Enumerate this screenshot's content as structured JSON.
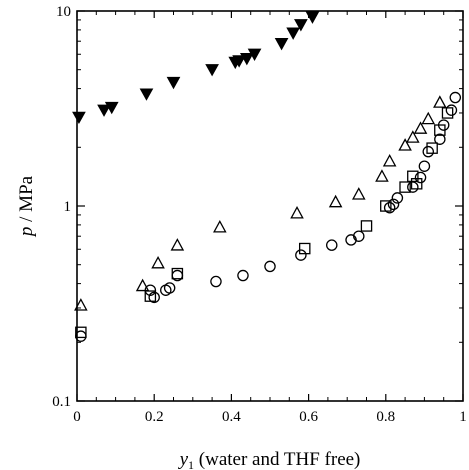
{
  "chart_data": {
    "type": "scatter",
    "title": "",
    "xlabel": {
      "symbol": "y",
      "subscript": "1",
      "rest": " (water and THF free)"
    },
    "ylabel": {
      "symbol": "p",
      "rest": " / MPa"
    },
    "xlim": [
      0,
      1
    ],
    "ylim": [
      0.1,
      10
    ],
    "yscale": "log",
    "grid": false,
    "legend": "none",
    "x_ticks": [
      {
        "value": 0,
        "label": "0"
      },
      {
        "value": 0.2,
        "label": "0.2"
      },
      {
        "value": 0.4,
        "label": "0.4"
      },
      {
        "value": 0.6,
        "label": "0.6"
      },
      {
        "value": 0.8,
        "label": "0.8"
      },
      {
        "value": 1,
        "label": "1"
      }
    ],
    "y_ticks": [
      {
        "value": 0.1,
        "label": "0.1"
      },
      {
        "value": 1,
        "label": "1"
      },
      {
        "value": 10,
        "label": "10"
      }
    ],
    "series": [
      {
        "marker": "triangle-down-filled",
        "color": "#000000",
        "points": [
          [
            0.005,
            2.85
          ],
          [
            0.07,
            3.1
          ],
          [
            0.09,
            3.2
          ],
          [
            0.18,
            3.75
          ],
          [
            0.25,
            4.3
          ],
          [
            0.35,
            5.0
          ],
          [
            0.41,
            5.45
          ],
          [
            0.42,
            5.55
          ],
          [
            0.44,
            5.7
          ],
          [
            0.46,
            6.0
          ],
          [
            0.53,
            6.8
          ],
          [
            0.56,
            7.7
          ],
          [
            0.58,
            8.5
          ],
          [
            0.61,
            9.3
          ]
        ]
      },
      {
        "marker": "triangle-open",
        "color": "#000000",
        "points": [
          [
            0.01,
            0.31
          ],
          [
            0.17,
            0.39
          ],
          [
            0.21,
            0.51
          ],
          [
            0.26,
            0.63
          ],
          [
            0.37,
            0.78
          ],
          [
            0.57,
            0.92
          ],
          [
            0.67,
            1.05
          ],
          [
            0.73,
            1.15
          ],
          [
            0.79,
            1.42
          ],
          [
            0.81,
            1.7
          ],
          [
            0.85,
            2.05
          ],
          [
            0.87,
            2.25
          ],
          [
            0.89,
            2.5
          ],
          [
            0.91,
            2.8
          ],
          [
            0.94,
            3.4
          ]
        ]
      },
      {
        "marker": "square-open",
        "color": "#000000",
        "points": [
          [
            0.01,
            0.225
          ],
          [
            0.19,
            0.345
          ],
          [
            0.26,
            0.45
          ],
          [
            0.59,
            0.605
          ],
          [
            0.75,
            0.79
          ],
          [
            0.8,
            1.0
          ],
          [
            0.85,
            1.25
          ],
          [
            0.87,
            1.42
          ],
          [
            0.88,
            1.3
          ],
          [
            0.92,
            1.98
          ],
          [
            0.94,
            2.45
          ],
          [
            0.96,
            3.0
          ]
        ]
      },
      {
        "marker": "circle-open",
        "color": "#000000",
        "points": [
          [
            0.01,
            0.215
          ],
          [
            0.19,
            0.37
          ],
          [
            0.2,
            0.34
          ],
          [
            0.23,
            0.37
          ],
          [
            0.24,
            0.38
          ],
          [
            0.26,
            0.44
          ],
          [
            0.36,
            0.41
          ],
          [
            0.43,
            0.44
          ],
          [
            0.5,
            0.49
          ],
          [
            0.58,
            0.56
          ],
          [
            0.66,
            0.63
          ],
          [
            0.71,
            0.67
          ],
          [
            0.73,
            0.7
          ],
          [
            0.81,
            0.98
          ],
          [
            0.82,
            1.02
          ],
          [
            0.83,
            1.1
          ],
          [
            0.87,
            1.25
          ],
          [
            0.89,
            1.4
          ],
          [
            0.9,
            1.6
          ],
          [
            0.91,
            1.9
          ],
          [
            0.94,
            2.2
          ],
          [
            0.95,
            2.6
          ],
          [
            0.97,
            3.1
          ],
          [
            0.98,
            3.6
          ]
        ]
      }
    ]
  }
}
